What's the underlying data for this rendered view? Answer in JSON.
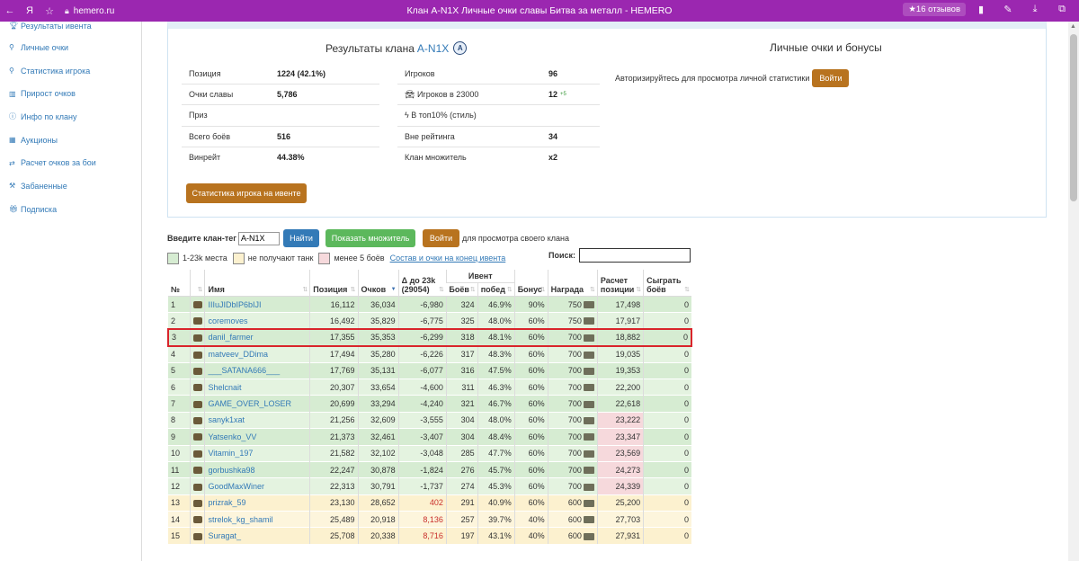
{
  "browser": {
    "url": "hemero.ru",
    "title": "Клан A-N1X Личные очки славы Битва за металл - HEMERO",
    "reviews": "★16 отзывов"
  },
  "sidebar": {
    "items": [
      {
        "label": "Результаты ивента",
        "icon": "trophy-icon"
      },
      {
        "label": "Личные очки",
        "icon": "user-icon"
      },
      {
        "label": "Статистика игрока",
        "icon": "user-icon"
      },
      {
        "label": "Прирост очков",
        "icon": "bar-chart-icon"
      },
      {
        "label": "Инфо по клану",
        "icon": "info-icon"
      },
      {
        "label": "Аукционы",
        "icon": "calendar-icon"
      },
      {
        "label": "Расчет очков за бои",
        "icon": "exchange-icon"
      },
      {
        "label": "Забаненные",
        "icon": "hammer-icon"
      },
      {
        "label": "Подписка",
        "icon": "gift-icon"
      }
    ]
  },
  "clan_results": {
    "title": "Результаты клана",
    "tag": "A-N1X",
    "left": [
      {
        "label": "Позиция",
        "value": "1224 (42.1%)"
      },
      {
        "label": "Очки славы",
        "value": "5,786"
      },
      {
        "label": "Приз",
        "value": ""
      },
      {
        "label": "Всего боёв",
        "value": "516"
      },
      {
        "label": "Винрейт",
        "value": "44.38%"
      }
    ],
    "right": [
      {
        "label": "Игроков",
        "value": "96",
        "extra": ""
      },
      {
        "label": "Игроков в 23000",
        "value": "12",
        "extra": "+5"
      },
      {
        "label": "В топ10% (стиль)",
        "value": "",
        "extra": ""
      },
      {
        "label": "Вне рейтинга",
        "value": "34",
        "extra": ""
      },
      {
        "label": "Клан множитель",
        "value": "x2",
        "extra": ""
      }
    ],
    "stat_button": "Статистика игрока на ивенте"
  },
  "personal": {
    "title": "Личные очки и бонусы",
    "text": "Авторизируйтесь для просмотра личной статистики",
    "login": "Войти"
  },
  "filters": {
    "clan_tag_label": "Введите клан-тег",
    "clan_tag_value": "A-N1X",
    "find": "Найти",
    "show_multiplier": "Показать множитель",
    "login": "Войти",
    "login_hint": "для просмотра своего клана",
    "legend": [
      "1-23k места",
      "не получают танк",
      "менее 5 боёв"
    ],
    "legend_colors": [
      "#d6ecd2",
      "#fcf1cf",
      "#f6d9dc"
    ],
    "composition_link": "Состав и очки на конец ивента",
    "search_label": "Поиск:"
  },
  "table": {
    "headers": {
      "num": "№",
      "name": "Имя",
      "position": "Позиция",
      "points": "Очков",
      "delta": "Δ до 23k (29054)",
      "event": "Ивент",
      "battles": "Боёв",
      "wins": "побед",
      "bonus": "Бонус",
      "reward": "Награда",
      "calc_position": "Расчет позиции",
      "play_battles": "Сыграть боёв"
    },
    "rows": [
      {
        "n": "1",
        "name": "IIIuJIDbIP6bIJI",
        "pos": "16,112",
        "pts": "36,034",
        "delta": "-6,980",
        "battles": "324",
        "wins": "46.9%",
        "bonus": "90%",
        "reward": "750",
        "calc": "17,498",
        "play": "0",
        "type": "green",
        "pink": false
      },
      {
        "n": "2",
        "name": "coremoves",
        "pos": "16,492",
        "pts": "35,829",
        "delta": "-6,775",
        "battles": "325",
        "wins": "48.0%",
        "bonus": "60%",
        "reward": "750",
        "calc": "17,917",
        "play": "0",
        "type": "green",
        "pink": false
      },
      {
        "n": "3",
        "name": "danil_farmer",
        "pos": "17,355",
        "pts": "35,353",
        "delta": "-6,299",
        "battles": "318",
        "wins": "48.1%",
        "bonus": "60%",
        "reward": "700",
        "calc": "18,882",
        "play": "0",
        "type": "green",
        "pink": false,
        "selected": true
      },
      {
        "n": "4",
        "name": "matveev_DDima",
        "pos": "17,494",
        "pts": "35,280",
        "delta": "-6,226",
        "battles": "317",
        "wins": "48.3%",
        "bonus": "60%",
        "reward": "700",
        "calc": "19,035",
        "play": "0",
        "type": "green",
        "pink": false
      },
      {
        "n": "5",
        "name": "___SATANA666___",
        "pos": "17,769",
        "pts": "35,131",
        "delta": "-6,077",
        "battles": "316",
        "wins": "47.5%",
        "bonus": "60%",
        "reward": "700",
        "calc": "19,353",
        "play": "0",
        "type": "green",
        "pink": false
      },
      {
        "n": "6",
        "name": "Shelcnait",
        "pos": "20,307",
        "pts": "33,654",
        "delta": "-4,600",
        "battles": "311",
        "wins": "46.3%",
        "bonus": "60%",
        "reward": "700",
        "calc": "22,200",
        "play": "0",
        "type": "green",
        "pink": false
      },
      {
        "n": "7",
        "name": "GAME_OVER_LOSER",
        "pos": "20,699",
        "pts": "33,294",
        "delta": "-4,240",
        "battles": "321",
        "wins": "46.7%",
        "bonus": "60%",
        "reward": "700",
        "calc": "22,618",
        "play": "0",
        "type": "green",
        "pink": false
      },
      {
        "n": "8",
        "name": "sanyk1xat",
        "pos": "21,256",
        "pts": "32,609",
        "delta": "-3,555",
        "battles": "304",
        "wins": "48.0%",
        "bonus": "60%",
        "reward": "700",
        "calc": "23,222",
        "play": "0",
        "type": "green",
        "pink": true
      },
      {
        "n": "9",
        "name": "Yatsenko_VV",
        "pos": "21,373",
        "pts": "32,461",
        "delta": "-3,407",
        "battles": "304",
        "wins": "48.4%",
        "bonus": "60%",
        "reward": "700",
        "calc": "23,347",
        "play": "0",
        "type": "green",
        "pink": true
      },
      {
        "n": "10",
        "name": "Vitamin_197",
        "pos": "21,582",
        "pts": "32,102",
        "delta": "-3,048",
        "battles": "285",
        "wins": "47.7%",
        "bonus": "60%",
        "reward": "700",
        "calc": "23,569",
        "play": "0",
        "type": "green",
        "pink": true
      },
      {
        "n": "11",
        "name": "gorbushka98",
        "pos": "22,247",
        "pts": "30,878",
        "delta": "-1,824",
        "battles": "276",
        "wins": "45.7%",
        "bonus": "60%",
        "reward": "700",
        "calc": "24,273",
        "play": "0",
        "type": "green",
        "pink": true
      },
      {
        "n": "12",
        "name": "GoodMaxWiner",
        "pos": "22,313",
        "pts": "30,791",
        "delta": "-1,737",
        "battles": "274",
        "wins": "45.3%",
        "bonus": "60%",
        "reward": "700",
        "calc": "24,339",
        "play": "0",
        "type": "green",
        "pink": true
      },
      {
        "n": "13",
        "name": "prizrak_59",
        "pos": "23,130",
        "pts": "28,652",
        "delta": "402",
        "battles": "291",
        "wins": "40.9%",
        "bonus": "60%",
        "reward": "600",
        "calc": "25,200",
        "play": "0",
        "type": "yellow",
        "pink": false
      },
      {
        "n": "14",
        "name": "strelok_kg_shamil",
        "pos": "25,489",
        "pts": "20,918",
        "delta": "8,136",
        "battles": "257",
        "wins": "39.7%",
        "bonus": "40%",
        "reward": "600",
        "calc": "27,703",
        "play": "0",
        "type": "yellow",
        "pink": false
      },
      {
        "n": "15",
        "name": "Suragat_",
        "pos": "25,708",
        "pts": "20,338",
        "delta": "8,716",
        "battles": "197",
        "wins": "43.1%",
        "bonus": "40%",
        "reward": "600",
        "calc": "27,931",
        "play": "0",
        "type": "yellow",
        "pink": false
      }
    ]
  }
}
